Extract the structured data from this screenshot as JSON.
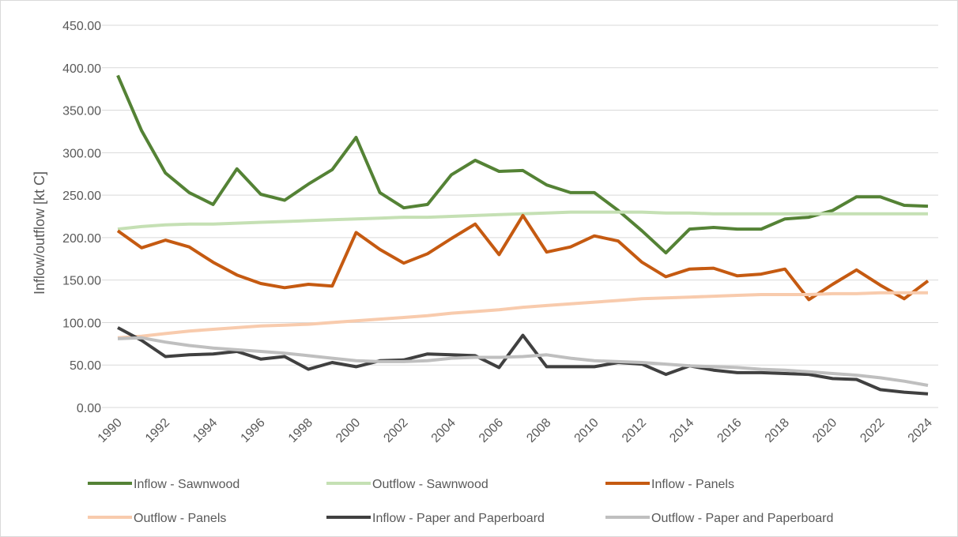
{
  "chart_data": {
    "type": "line",
    "title": "",
    "xlabel": "",
    "ylabel": "Inflow/outflow [kt C]",
    "ylim": [
      0,
      450
    ],
    "y_ticks": [
      "0.00",
      "50.00",
      "100.00",
      "150.00",
      "200.00",
      "250.00",
      "300.00",
      "350.00",
      "400.00",
      "450.00"
    ],
    "x": [
      1990,
      1991,
      1992,
      1993,
      1994,
      1995,
      1996,
      1997,
      1998,
      1999,
      2000,
      2001,
      2002,
      2003,
      2004,
      2005,
      2006,
      2007,
      2008,
      2009,
      2010,
      2011,
      2012,
      2013,
      2014,
      2015,
      2016,
      2017,
      2018,
      2019,
      2020,
      2021,
      2022,
      2023,
      2024
    ],
    "x_tick_labels": [
      "1990",
      "1992",
      "1994",
      "1996",
      "1998",
      "2000",
      "2002",
      "2004",
      "2006",
      "2008",
      "2010",
      "2012",
      "2014",
      "2016",
      "2018",
      "2020",
      "2022",
      "2024"
    ],
    "grid": true,
    "legend_position": "bottom",
    "series": [
      {
        "name": "Inflow - Sawnwood",
        "color": "#548235",
        "values": [
          391,
          326,
          276,
          253,
          239,
          281,
          251,
          244,
          263,
          280,
          318,
          253,
          235,
          239,
          274,
          291,
          278,
          279,
          262,
          253,
          253,
          232,
          208,
          182,
          210,
          212,
          210,
          210,
          222,
          224,
          232,
          248,
          248,
          238,
          237
        ]
      },
      {
        "name": "Outflow - Sawnwood",
        "color": "#c5e0b4",
        "values": [
          210,
          213,
          215,
          216,
          216,
          217,
          218,
          219,
          220,
          221,
          222,
          223,
          224,
          224,
          225,
          226,
          227,
          228,
          229,
          230,
          230,
          230,
          230,
          229,
          229,
          228,
          228,
          228,
          228,
          228,
          228,
          228,
          228,
          228,
          228
        ]
      },
      {
        "name": "Inflow - Panels",
        "color": "#c55a11",
        "values": [
          208,
          188,
          197,
          189,
          171,
          156,
          146,
          141,
          145,
          143,
          206,
          186,
          170,
          181,
          199,
          216,
          180,
          226,
          183,
          189,
          202,
          196,
          171,
          154,
          163,
          164,
          155,
          157,
          163,
          127,
          145,
          162,
          144,
          128,
          149
        ]
      },
      {
        "name": "Outflow - Panels",
        "color": "#f8cbad",
        "values": [
          82,
          84,
          87,
          90,
          92,
          94,
          96,
          97,
          98,
          100,
          102,
          104,
          106,
          108,
          111,
          113,
          115,
          118,
          120,
          122,
          124,
          126,
          128,
          129,
          130,
          131,
          132,
          133,
          133,
          133,
          134,
          134,
          135,
          135,
          135
        ]
      },
      {
        "name": "Inflow - Paper and Paperboard",
        "color": "#404040",
        "values": [
          94,
          79,
          60,
          62,
          63,
          66,
          57,
          60,
          45,
          53,
          48,
          55,
          56,
          63,
          62,
          61,
          47,
          85,
          48,
          48,
          48,
          53,
          51,
          39,
          49,
          44,
          41,
          41,
          40,
          39,
          34,
          33,
          21,
          18,
          16
        ]
      },
      {
        "name": "Outflow - Paper and Paperboard",
        "color": "#bfbfbf",
        "values": [
          81,
          82,
          77,
          73,
          70,
          68,
          66,
          64,
          61,
          58,
          55,
          54,
          54,
          55,
          58,
          59,
          59,
          60,
          62,
          58,
          55,
          54,
          53,
          51,
          49,
          48,
          47,
          45,
          44,
          42,
          40,
          38,
          35,
          31,
          26
        ]
      }
    ]
  }
}
